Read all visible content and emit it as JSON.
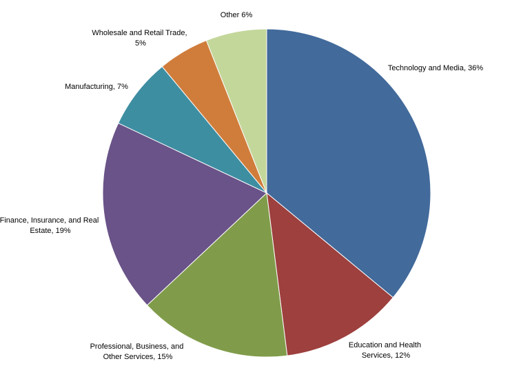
{
  "chart_data": {
    "type": "pie",
    "title": "",
    "start_angle_deg": 0,
    "direction": "clockwise",
    "slices": [
      {
        "label": "Technology and Media",
        "value": 36,
        "label_text": [
          "Technology and Media, 36%"
        ],
        "color": "#426a9b"
      },
      {
        "label": "Education and Health Services",
        "value": 12,
        "label_text": [
          "Education and Health",
          "Services, 12%"
        ],
        "color": "#9d403e"
      },
      {
        "label": "Professional, Business, and Other Services",
        "value": 15,
        "label_text": [
          "Professional, Business, and",
          "Other Services, 15%"
        ],
        "color": "#809c4a"
      },
      {
        "label": "Finance, Insurance, and Real Estate",
        "value": 19,
        "label_text": [
          "Finance, Insurance, and Real",
          "Estate, 19%"
        ],
        "color": "#6a5388"
      },
      {
        "label": "Manufacturing",
        "value": 7,
        "label_text": [
          "Manufacturing, 7%"
        ],
        "color": "#3e8ea2"
      },
      {
        "label": "Wholesale and Retail Trade",
        "value": 5,
        "label_text": [
          "Wholesale and Retail Trade,",
          "5%"
        ],
        "color": "#d07d3c"
      },
      {
        "label": "Other",
        "value": 6,
        "label_text": [
          "Other 6%"
        ],
        "color": "#c4d79b"
      }
    ]
  }
}
